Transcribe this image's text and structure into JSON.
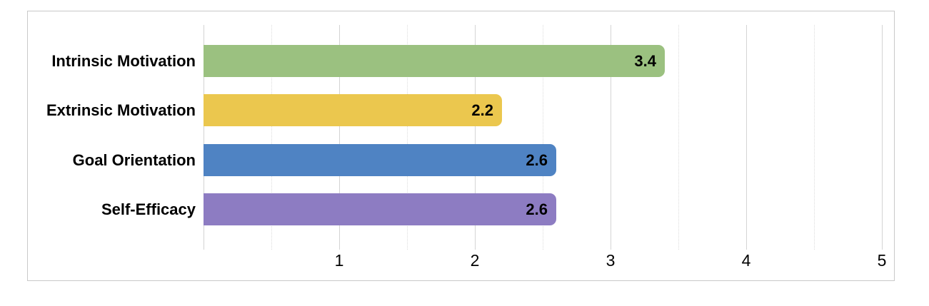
{
  "chart_data": {
    "type": "bar",
    "orientation": "horizontal",
    "title": "",
    "xlabel": "",
    "ylabel": "",
    "categories": [
      "Intrinsic Motivation",
      "Extrinsic Motivation",
      "Goal Orientation",
      "Self-Efficacy"
    ],
    "values": [
      3.4,
      2.2,
      2.6,
      2.6
    ],
    "value_labels": [
      "3.4",
      "2.2",
      "2.6",
      "2.6"
    ],
    "bar_colors": [
      "#9bc180",
      "#ebc74e",
      "#4f83c3",
      "#8d7cc2"
    ],
    "xlim": [
      0,
      5
    ],
    "x_ticks": [
      1,
      2,
      3,
      4,
      5
    ],
    "x_tick_labels": [
      "1",
      "2",
      "3",
      "4",
      "5"
    ],
    "minor_grid_step": 0.5,
    "grid": "vertical",
    "legend_position": "none",
    "value_label_position": "inside-end"
  },
  "figure": {
    "background_color": "#ffffff",
    "frame_border_color": "#c9c9c9",
    "major_grid_color": "#d4d4d4",
    "minor_grid_color": "#dcdcdc",
    "text_color": "#000000"
  }
}
